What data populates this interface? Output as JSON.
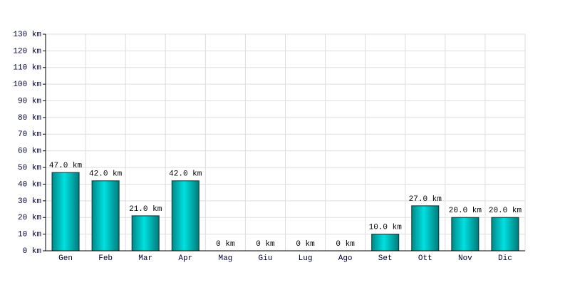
{
  "chart_data": {
    "type": "bar",
    "categories": [
      "Gen",
      "Feb",
      "Mar",
      "Apr",
      "Mag",
      "Giu",
      "Lug",
      "Ago",
      "Set",
      "Ott",
      "Nov",
      "Dic"
    ],
    "values": [
      47,
      42,
      21,
      42,
      0,
      0,
      0,
      0,
      10,
      27,
      20,
      20
    ],
    "value_labels": [
      "47.0 km",
      "42.0 km",
      "21.0 km",
      "42.0 km",
      "0 km",
      "0 km",
      "0 km",
      "0 km",
      "10.0 km",
      "27.0 km",
      "20.0 km",
      "20.0 km"
    ],
    "color": "#00e0e0",
    "ylim": [
      0,
      130
    ],
    "yticks": [
      {
        "value": 0,
        "label": "0 km"
      },
      {
        "value": 10,
        "label": "10 km"
      },
      {
        "value": 20,
        "label": "20 km"
      },
      {
        "value": 30,
        "label": "30 km"
      },
      {
        "value": 40,
        "label": "40 km"
      },
      {
        "value": 50,
        "label": "50 km"
      },
      {
        "value": 60,
        "label": "60 km"
      },
      {
        "value": 70,
        "label": "70 km"
      },
      {
        "value": 80,
        "label": "80 km"
      },
      {
        "value": 90,
        "label": "90 km"
      },
      {
        "value": 100,
        "label": "100 km"
      },
      {
        "value": 110,
        "label": "110 km"
      },
      {
        "value": 120,
        "label": "120 km"
      },
      {
        "value": 130,
        "label": "130 km"
      }
    ],
    "grid": true
  }
}
